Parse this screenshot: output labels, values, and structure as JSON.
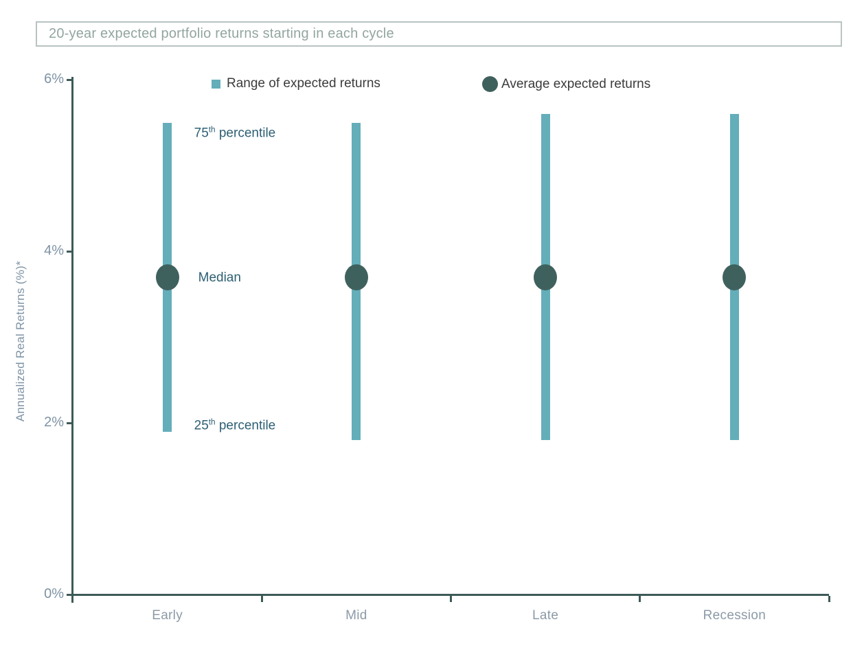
{
  "title": {
    "text": "20-year expected portfolio returns starting in each cycle"
  },
  "legend": [
    {
      "label": "Range of expected returns",
      "marker": "square-swatch"
    },
    {
      "label": "Average expected returns",
      "marker": "circle-swatch"
    }
  ],
  "annotations": {
    "p75": {
      "num": "75",
      "sup": "th",
      "text": " percentile"
    },
    "median": {
      "text": "Median"
    },
    "p25": {
      "num": "25",
      "sup": "th",
      "text": " percentile"
    }
  },
  "chart_data": {
    "type": "range-dot",
    "title": "20-year expected portfolio returns starting in each cycle",
    "categories": [
      "Early",
      "Mid",
      "Late",
      "Recession"
    ],
    "series": [
      {
        "name": "25th percentile (range low)",
        "values": [
          1.9,
          1.8,
          1.8,
          1.8
        ]
      },
      {
        "name": "75th percentile (range high)",
        "values": [
          5.5,
          5.5,
          5.6,
          5.6
        ]
      },
      {
        "name": "Average expected returns (median)",
        "values": [
          3.7,
          3.7,
          3.7,
          3.7
        ]
      }
    ],
    "xlabel": "",
    "ylabel": "Annualized Real Returns (%)*",
    "ylim": [
      0,
      6
    ],
    "y_ticks": [
      0,
      2,
      4,
      6
    ],
    "y_tick_labels": [
      "0%",
      "2%",
      "4%",
      "6%"
    ],
    "grid": false,
    "legend_position": "top",
    "legend_entries": [
      "Range of expected returns",
      "Average expected returns"
    ]
  },
  "colors": {
    "range": "#64aeba",
    "average": "#3f615e",
    "axis": "#3d5a57",
    "y_tick_label": "#7e93a4",
    "category_label": "#8c9aa7",
    "annotation": "#2d5f73",
    "title_text": "#92a5a1",
    "title_border": "#b9c3c2",
    "legend_text": "#3b3b3b"
  }
}
